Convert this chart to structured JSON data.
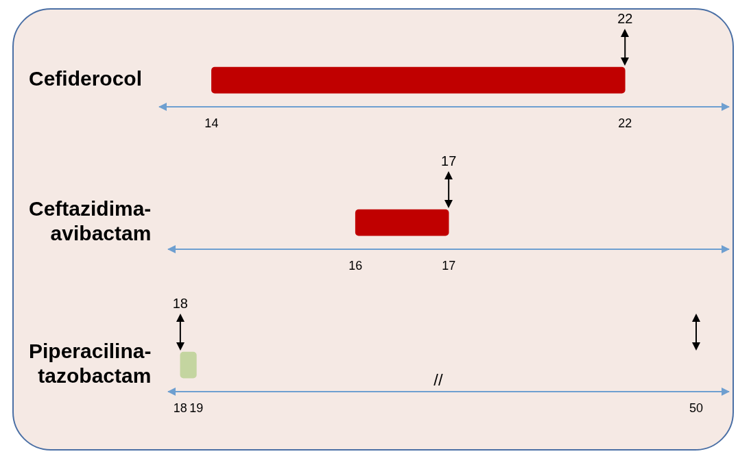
{
  "chart_data": [
    {
      "type": "bar",
      "orientation": "horizontal",
      "categories": [
        "Cefiderocol"
      ],
      "base": [
        14
      ],
      "values": [
        8
      ],
      "color": "#c00000",
      "xlim": [
        13,
        24
      ],
      "xticks": [
        14,
        22
      ],
      "tick_labels": "xy",
      "grid": false,
      "ref_lines": [
        {
          "axis": "x",
          "value": 22,
          "label": "22",
          "color": "#000000"
        }
      ]
    },
    {
      "type": "bar",
      "orientation": "horizontal",
      "categories": [
        "Ceftazidima-avibactam"
      ],
      "base": [
        16
      ],
      "values": [
        1
      ],
      "color": "#c00000",
      "xlim": [
        14,
        20
      ],
      "xticks": [
        16,
        17
      ],
      "tick_labels": "xy",
      "grid": false,
      "ref_lines": [
        {
          "axis": "x",
          "value": 17,
          "label": "17",
          "color": "#000000"
        }
      ]
    },
    {
      "type": "bar",
      "orientation": "horizontal",
      "categories": [
        "Piperacilina-tazobactam"
      ],
      "base": [
        18
      ],
      "values": [
        1
      ],
      "color": "#c4d5a0",
      "xlim": [
        17.3,
        52
      ],
      "xticks": [
        18,
        19,
        50
      ],
      "tick_labels": "xy",
      "grid": false,
      "annotations": [
        "//"
      ],
      "ref_lines": [
        {
          "axis": "x",
          "value": 18,
          "label": "18",
          "color": "#000000"
        },
        {
          "axis": "x",
          "value": 50,
          "label": null,
          "color": "#000000"
        }
      ]
    }
  ]
}
